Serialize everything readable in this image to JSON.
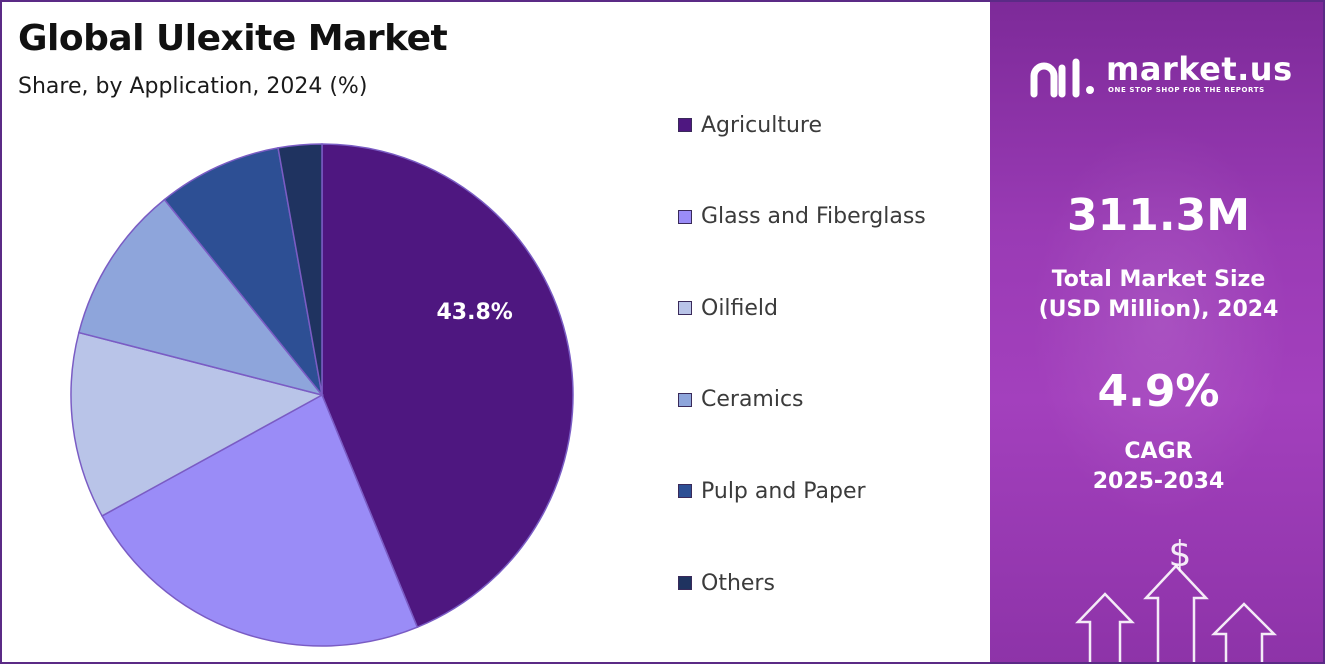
{
  "header": {
    "title": "Global Ulexite Market",
    "subtitle": "Share, by Application, 2024 (%)"
  },
  "chart_data": {
    "type": "pie",
    "categories": [
      "Agriculture",
      "Glass and Fiberglass",
      "Oilfield",
      "Ceramics",
      "Pulp and Paper",
      "Others"
    ],
    "values": [
      43.8,
      23.2,
      12.0,
      10.2,
      8.0,
      2.8
    ],
    "colors": [
      "#4e1780",
      "#9a8cf7",
      "#b9c4e8",
      "#8ea5db",
      "#2d4f94",
      "#1f3360"
    ],
    "data_labels": [
      "43.8%",
      "",
      "",
      "",
      "",
      ""
    ],
    "title": "Global Ulexite Market",
    "subtitle": "Share, by Application, 2024 (%)",
    "legend_position": "right"
  },
  "sidebar": {
    "brand_name": "market.us",
    "brand_tagline": "ONE STOP SHOP FOR THE REPORTS",
    "market_size_value": "311.3M",
    "market_size_label_1": "Total Market Size",
    "market_size_label_2": "(USD Million), 2024",
    "cagr_value": "4.9%",
    "cagr_label_1": "CAGR",
    "cagr_label_2": "2025-2034",
    "currency_symbol": "$"
  }
}
